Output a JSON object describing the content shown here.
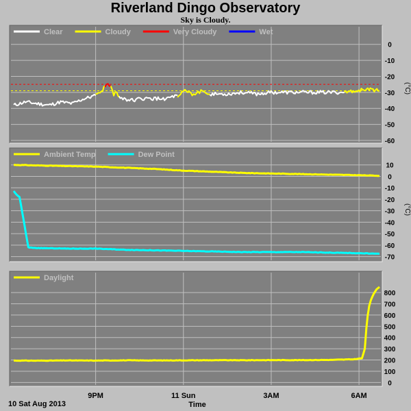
{
  "header": {
    "title": "Riverland Dingo Observatory",
    "status": "Sky is Cloudy."
  },
  "footer": {
    "date": "10 Sat Aug 2013",
    "time_label": "Time"
  },
  "x_axis": {
    "type": "time",
    "range_hours": [
      18.2,
      30.7
    ],
    "ticks": [
      {
        "hour": 21,
        "label": "9PM"
      },
      {
        "hour": 24,
        "label": "11 Sun"
      },
      {
        "hour": 27,
        "label": "3AM"
      },
      {
        "hour": 30,
        "label": "6AM"
      }
    ]
  },
  "colors": {
    "background": "#c0c0c0",
    "panel": "#808080",
    "grid": "#c0c0c0",
    "clear": "#ffffff",
    "cloudy": "#ffff00",
    "very_cloudy": "#ff0000",
    "wet": "#0000ff",
    "dew_point": "#00ffff"
  },
  "chart_data": [
    {
      "type": "line",
      "ylabel": "(°C)",
      "ylim": [
        -60,
        5
      ],
      "yticks": [
        0,
        -10,
        -20,
        -30,
        -40,
        -50,
        -60
      ],
      "grid": true,
      "legend": "top-left",
      "thresholds": [
        {
          "value": -25,
          "color": "#ff0000"
        },
        {
          "value": -29,
          "color": "#ffff00"
        }
      ],
      "series": [
        {
          "name": "Clear",
          "color": "#ffffff"
        },
        {
          "name": "Cloudy",
          "color": "#ffff00"
        },
        {
          "name": "Very Cloudy",
          "color": "#ff0000"
        },
        {
          "name": "Wet",
          "color": "#0000ff"
        }
      ],
      "segments": [
        {
          "color": "#ffffff",
          "points": [
            [
              18.2,
              -38
            ],
            [
              18.6,
              -36
            ],
            [
              19,
              -37
            ],
            [
              19.4,
              -38
            ],
            [
              19.8,
              -36
            ],
            [
              20.2,
              -37
            ],
            [
              20.6,
              -34
            ],
            [
              21,
              -32
            ]
          ]
        },
        {
          "color": "#ffff00",
          "points": [
            [
              21,
              -32
            ],
            [
              21.2,
              -30
            ],
            [
              21.32,
              -26
            ]
          ]
        },
        {
          "color": "#ff0000",
          "points": [
            [
              21.32,
              -26
            ],
            [
              21.42,
              -24.5
            ],
            [
              21.52,
              -26
            ]
          ]
        },
        {
          "color": "#ffff00",
          "points": [
            [
              21.52,
              -26
            ],
            [
              21.62,
              -31
            ],
            [
              21.72,
              -29
            ],
            [
              21.8,
              -33
            ]
          ]
        },
        {
          "color": "#ffffff",
          "points": [
            [
              21.8,
              -33
            ],
            [
              22.2,
              -35
            ],
            [
              22.6,
              -34
            ],
            [
              23,
              -34
            ],
            [
              23.4,
              -34
            ],
            [
              23.8,
              -32
            ]
          ]
        },
        {
          "color": "#ffff00",
          "points": [
            [
              23.8,
              -32
            ],
            [
              24,
              -29
            ],
            [
              24.3,
              -31
            ],
            [
              24.5,
              -30
            ],
            [
              24.7,
              -29
            ],
            [
              24.9,
              -31
            ]
          ]
        },
        {
          "color": "#ffffff",
          "points": [
            [
              24.9,
              -31
            ],
            [
              25.5,
              -31
            ],
            [
              26,
              -30
            ],
            [
              26.5,
              -31
            ],
            [
              27,
              -30
            ],
            [
              27.5,
              -30
            ],
            [
              28,
              -30
            ],
            [
              28.5,
              -30
            ],
            [
              29,
              -30
            ],
            [
              29.5,
              -30
            ]
          ]
        },
        {
          "color": "#ffff00",
          "points": [
            [
              29.5,
              -30
            ],
            [
              29.9,
              -29
            ],
            [
              30.3,
              -28
            ],
            [
              30.7,
              -29
            ]
          ]
        }
      ]
    },
    {
      "type": "line",
      "ylabel": "(°C)",
      "ylim": [
        -72,
        14
      ],
      "yticks": [
        10,
        0,
        -10,
        -20,
        -30,
        -40,
        -50,
        -60,
        -70
      ],
      "grid": true,
      "legend": "top-left",
      "series": [
        {
          "name": "Ambient Temp",
          "color": "#ffff00",
          "x": [
            18.2,
            19,
            20,
            21,
            22,
            23,
            24,
            25,
            26,
            27,
            28,
            29,
            30,
            30.7
          ],
          "y": [
            10,
            9.5,
            9,
            8.5,
            7.5,
            6.5,
            5,
            4,
            3,
            2.5,
            2,
            1.5,
            1,
            0.5
          ]
        },
        {
          "name": "Dew Point",
          "color": "#00ffff",
          "x": [
            18.2,
            18.3,
            18.4,
            18.55,
            18.7,
            19,
            20,
            21,
            22,
            23,
            24,
            25,
            26,
            27,
            28,
            29,
            30,
            30.7
          ],
          "y": [
            -13,
            -16,
            -18,
            -40,
            -62,
            -62.5,
            -63,
            -63,
            -64,
            -64.5,
            -65,
            -65.5,
            -66,
            -66,
            -66,
            -66.5,
            -67,
            -67.5
          ]
        }
      ]
    },
    {
      "type": "line",
      "ylim": [
        -10,
        880
      ],
      "yticks": [
        800,
        700,
        600,
        500,
        400,
        300,
        200,
        100,
        0
      ],
      "grid": true,
      "legend": "top-left",
      "series": [
        {
          "name": "Daylight",
          "color": "#ffff00",
          "x": [
            18.2,
            19,
            20,
            21,
            22,
            23,
            24,
            25,
            26,
            27,
            28,
            29,
            29.8,
            30.1,
            30.2,
            30.25,
            30.3,
            30.35,
            30.4,
            30.5,
            30.6,
            30.7
          ],
          "y": [
            195,
            194,
            196,
            195,
            197,
            196,
            197,
            198,
            198,
            199,
            199,
            201,
            206,
            215,
            300,
            480,
            600,
            680,
            730,
            790,
            830,
            850
          ]
        }
      ]
    }
  ]
}
